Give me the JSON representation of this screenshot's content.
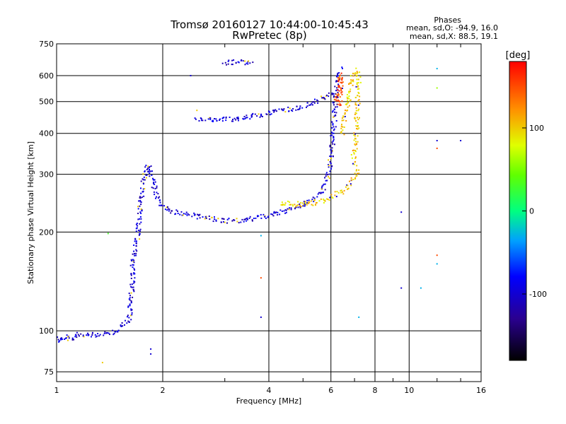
{
  "header": {
    "title_line1": "Tromsø 20160127 10:44:00-10:45:43",
    "title_line2": "RwPretec (8p)",
    "phase_title": "Phases",
    "phase_o": "mean, sd,O: -94.9, 16.0",
    "phase_x": "mean, sd,X:  88.5, 19.1"
  },
  "colorbar": {
    "unit": "[deg]",
    "ticks": [
      "100",
      "0",
      "-100"
    ],
    "tick_values": [
      100,
      0,
      -100
    ],
    "range": [
      -180,
      180
    ]
  },
  "chart_data": {
    "type": "scatter",
    "xlabel": "Frequency [MHz]",
    "ylabel": "Stationary phase Virtual Height [km]",
    "x_scale": "log",
    "y_scale": "log",
    "xlim": [
      1,
      16
    ],
    "ylim": [
      70,
      750
    ],
    "x_ticks": [
      1,
      2,
      4,
      6,
      8,
      10,
      16
    ],
    "x_tick_labels": [
      "1",
      "2",
      "4",
      "6",
      "8",
      "10",
      "16"
    ],
    "y_ticks": [
      75,
      100,
      200,
      300,
      400,
      500,
      600,
      750
    ],
    "y_tick_labels": [
      "75",
      "100",
      "200",
      "300",
      "400",
      "500",
      "600",
      "750"
    ],
    "grid": true,
    "color_encodes": "phase [deg]",
    "traces": [
      {
        "points": [
          [
            1.0,
            95
          ],
          [
            1.03,
            93
          ],
          [
            1.06,
            96
          ],
          [
            1.1,
            94
          ],
          [
            1.15,
            98
          ],
          [
            1.2,
            97
          ],
          [
            1.3,
            97
          ],
          [
            1.4,
            98
          ],
          [
            1.5,
            101
          ],
          [
            1.55,
            104
          ],
          [
            1.6,
            108
          ],
          [
            1.63,
            125
          ],
          [
            1.65,
            160
          ],
          [
            1.67,
            180
          ],
          [
            1.7,
            200
          ],
          [
            1.72,
            230
          ],
          [
            1.75,
            260
          ],
          [
            1.78,
            300
          ],
          [
            1.82,
            320
          ],
          [
            1.86,
            300
          ],
          [
            1.9,
            270
          ],
          [
            1.95,
            250
          ],
          [
            2.0,
            240
          ],
          [
            2.1,
            232
          ],
          [
            2.3,
            227
          ],
          [
            2.6,
            222
          ],
          [
            3.0,
            216
          ],
          [
            3.4,
            218
          ],
          [
            3.8,
            222
          ],
          [
            4.2,
            228
          ],
          [
            4.6,
            234
          ],
          [
            5.0,
            242
          ],
          [
            5.4,
            252
          ],
          [
            5.7,
            272
          ],
          [
            5.9,
            300
          ],
          [
            6.0,
            340
          ],
          [
            6.1,
            400
          ],
          [
            6.15,
            470
          ],
          [
            6.2,
            540
          ],
          [
            6.3,
            600
          ],
          [
            6.4,
            630
          ]
        ],
        "phase": -100
      },
      {
        "points": [
          [
            4.3,
            245
          ],
          [
            4.8,
            243
          ],
          [
            5.2,
            244
          ],
          [
            5.6,
            248
          ],
          [
            6.0,
            255
          ],
          [
            6.3,
            262
          ],
          [
            6.6,
            272
          ],
          [
            6.9,
            285
          ],
          [
            7.1,
            300
          ],
          [
            7.2,
            320
          ]
        ],
        "phase": 100
      },
      {
        "points": [
          [
            2.5,
            445
          ],
          [
            2.8,
            440
          ],
          [
            3.2,
            442
          ],
          [
            3.6,
            452
          ],
          [
            4.0,
            462
          ],
          [
            4.4,
            472
          ],
          [
            4.8,
            478
          ],
          [
            5.2,
            490
          ],
          [
            5.6,
            505
          ],
          [
            5.9,
            520
          ],
          [
            6.1,
            540
          ]
        ],
        "phase": -100
      },
      {
        "points": [
          [
            6.45,
            400
          ],
          [
            6.55,
            450
          ],
          [
            6.7,
            500
          ],
          [
            6.85,
            560
          ],
          [
            6.95,
            610
          ],
          [
            7.1,
            625
          ],
          [
            7.2,
            600
          ],
          [
            7.1,
            420
          ],
          [
            7.0,
            350
          ],
          [
            6.9,
            320
          ]
        ],
        "phase": 100
      },
      {
        "points": [
          [
            6.2,
            500
          ],
          [
            6.3,
            530
          ],
          [
            6.35,
            560
          ],
          [
            6.4,
            600
          ],
          [
            6.35,
            480
          ]
        ],
        "phase": 150
      },
      {
        "points": [
          [
            3.0,
            655
          ],
          [
            3.2,
            660
          ],
          [
            3.4,
            658
          ],
          [
            3.6,
            655
          ]
        ],
        "phase": -100
      }
    ],
    "isolated_points": [
      {
        "x": 12.0,
        "y": 630,
        "phase": -30
      },
      {
        "x": 12.0,
        "y": 550,
        "phase": 60
      },
      {
        "x": 12.0,
        "y": 360,
        "phase": 150
      },
      {
        "x": 12.0,
        "y": 380,
        "phase": -100
      },
      {
        "x": 14.0,
        "y": 380,
        "phase": -100
      },
      {
        "x": 12.0,
        "y": 170,
        "phase": 150
      },
      {
        "x": 12.0,
        "y": 160,
        "phase": -30
      },
      {
        "x": 9.5,
        "y": 230,
        "phase": -100
      },
      {
        "x": 9.5,
        "y": 135,
        "phase": -100
      },
      {
        "x": 10.8,
        "y": 135,
        "phase": -30
      },
      {
        "x": 7.2,
        "y": 110,
        "phase": -30
      },
      {
        "x": 3.8,
        "y": 110,
        "phase": -100
      },
      {
        "x": 3.8,
        "y": 195,
        "phase": -30
      },
      {
        "x": 3.8,
        "y": 145,
        "phase": 150
      },
      {
        "x": 1.4,
        "y": 198,
        "phase": 30
      },
      {
        "x": 1.85,
        "y": 88,
        "phase": -100
      },
      {
        "x": 1.85,
        "y": 85,
        "phase": -100
      },
      {
        "x": 1.35,
        "y": 80,
        "phase": 100
      },
      {
        "x": 2.4,
        "y": 600,
        "phase": -100
      },
      {
        "x": 2.5,
        "y": 470,
        "phase": 100
      }
    ]
  }
}
